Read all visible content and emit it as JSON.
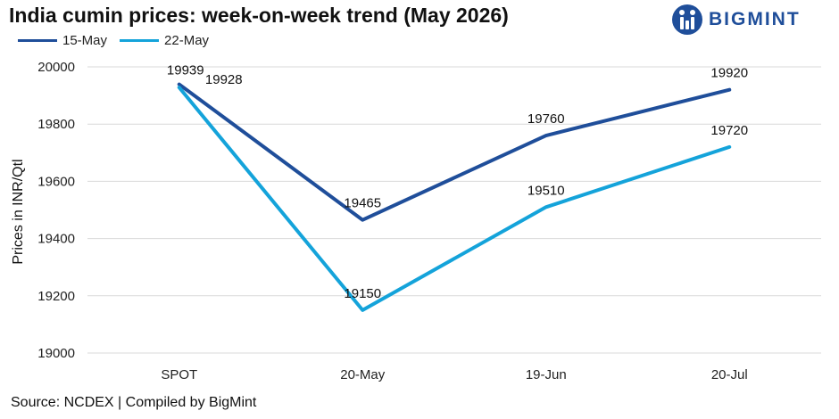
{
  "header": {
    "title": "India cumin prices: week-on-week trend (May 2026)",
    "brand": "BIGMINT"
  },
  "footer": {
    "source": "Source: NCDEX | Compiled by BigMint"
  },
  "colors": {
    "series_1": "#1f4e9a",
    "series_2": "#14a3da",
    "brand": "#1f4e9a",
    "grid": "#d9d9d9"
  },
  "chart_data": {
    "type": "line",
    "title": "India cumin prices: week-on-week trend (May 2026)",
    "xlabel": "",
    "ylabel": "Prices in INR/Qtl",
    "categories": [
      "SPOT",
      "20-May",
      "19-Jun",
      "20-Jul"
    ],
    "ylim": [
      19000,
      20000
    ],
    "yticks": [
      19000,
      19200,
      19400,
      19600,
      19800,
      20000
    ],
    "grid": true,
    "legend_position": "top-left",
    "series": [
      {
        "name": "15-May",
        "values": [
          19939,
          19465,
          19760,
          19920
        ]
      },
      {
        "name": "22-May",
        "values": [
          19928,
          19150,
          19510,
          19720
        ]
      }
    ]
  }
}
